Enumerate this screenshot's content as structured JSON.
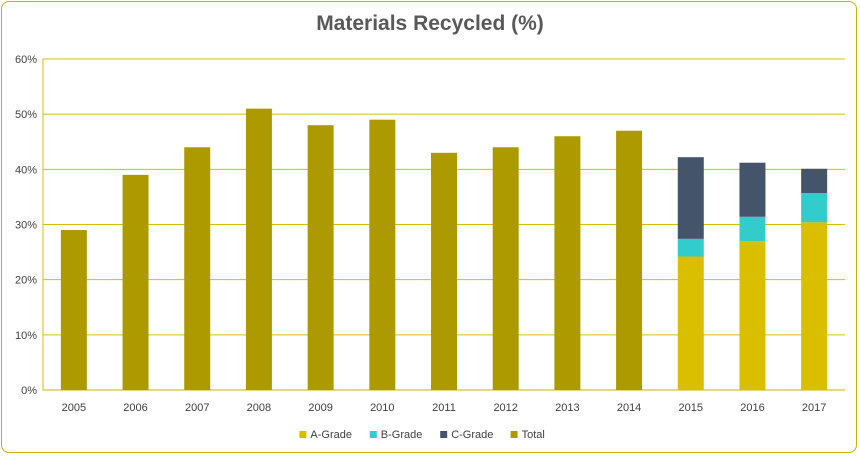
{
  "chart_data": {
    "type": "bar",
    "title": "Materials Recycled (%)",
    "xlabel": "",
    "ylabel": "",
    "ylim": [
      0,
      60
    ],
    "yticks": [
      "0%",
      "10%",
      "20%",
      "30%",
      "40%",
      "50%",
      "60%"
    ],
    "categories": [
      "2005",
      "2006",
      "2007",
      "2008",
      "2009",
      "2010",
      "2011",
      "2012",
      "2013",
      "2014",
      "2015",
      "2016",
      "2017"
    ],
    "grid": true,
    "legend_position": "bottom",
    "stacked": true,
    "series": [
      {
        "name": "A-Grade",
        "color": "#d9bf00",
        "values": [
          null,
          null,
          null,
          null,
          null,
          null,
          null,
          null,
          null,
          null,
          24.2,
          27.0,
          30.4
        ]
      },
      {
        "name": "B-Grade",
        "color": "#33cccc",
        "values": [
          null,
          null,
          null,
          null,
          null,
          null,
          null,
          null,
          null,
          null,
          3.2,
          4.4,
          5.3
        ]
      },
      {
        "name": "C-Grade",
        "color": "#44546a",
        "values": [
          null,
          null,
          null,
          null,
          null,
          null,
          null,
          null,
          null,
          null,
          14.8,
          9.8,
          4.4
        ]
      },
      {
        "name": "Total",
        "color": "#ad9a00",
        "values": [
          29,
          39,
          44,
          51,
          48,
          49,
          43,
          44,
          46,
          47,
          null,
          null,
          null
        ]
      }
    ]
  }
}
